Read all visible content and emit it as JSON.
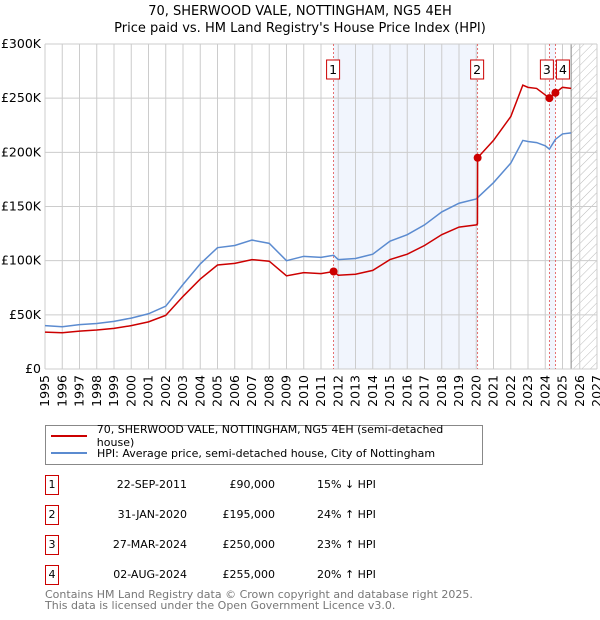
{
  "title_line1": "70, SHERWOOD VALE, NOTTINGHAM, NG5 4EH",
  "title_line2": "Price paid vs. HM Land Registry's House Price Index (HPI)",
  "chart_data": {
    "type": "line",
    "title": "70, SHERWOOD VALE, NOTTINGHAM, NG5 4EH — Price paid vs. HM Land Registry's House Price Index (HPI)",
    "xlim": [
      1995,
      2027
    ],
    "ylim": [
      0,
      300000
    ],
    "x_ticks": [
      "1995",
      "1996",
      "1997",
      "1998",
      "1999",
      "2000",
      "2001",
      "2002",
      "2003",
      "2004",
      "2005",
      "2006",
      "2007",
      "2008",
      "2009",
      "2010",
      "2011",
      "2012",
      "2013",
      "2014",
      "2015",
      "2016",
      "2017",
      "2018",
      "2019",
      "2020",
      "2021",
      "2022",
      "2023",
      "2024",
      "2025",
      "2026",
      "2027"
    ],
    "y_ticks": [
      {
        "v": 0,
        "label": "£0"
      },
      {
        "v": 50000,
        "label": "£50K"
      },
      {
        "v": 100000,
        "label": "£100K"
      },
      {
        "v": 150000,
        "label": "£150K"
      },
      {
        "v": 200000,
        "label": "£200K"
      },
      {
        "v": 250000,
        "label": "£250K"
      },
      {
        "v": 300000,
        "label": "£300K"
      }
    ],
    "grid": true,
    "forecast_start": 2025.5,
    "shaded_ranges": [
      [
        2011.73,
        2020.08
      ],
      [
        2024.24,
        2024.59
      ]
    ],
    "series": [
      {
        "name": "70, SHERWOOD VALE, NOTTINGHAM, NG5 4EH (semi-detached house)",
        "color": "#cc0000",
        "x": [
          1995,
          1996,
          1997,
          1998,
          1999,
          2000,
          2001,
          2002,
          2003,
          2004,
          2005,
          2006,
          2007,
          2008,
          2009,
          2010,
          2011,
          2011.73,
          2012,
          2013,
          2014,
          2015,
          2016,
          2017,
          2018,
          2019,
          2020,
          2020.07,
          2020.08,
          2021,
          2022,
          2022.7,
          2023,
          2023.5,
          2024,
          2024.24,
          2024.59,
          2025,
          2025.5
        ],
        "y": [
          34000,
          33500,
          35000,
          36000,
          37500,
          40000,
          43500,
          49500,
          67000,
          83000,
          96000,
          97500,
          101000,
          99500,
          86000,
          89000,
          88000,
          90000,
          86500,
          87500,
          91000,
          101000,
          106000,
          114000,
          124000,
          131000,
          133000,
          134000,
          195000,
          211000,
          233000,
          262000,
          260000,
          259000,
          253000,
          250000,
          255000,
          260000,
          259000
        ]
      },
      {
        "name": "HPI: Average price, semi-detached house, City of Nottingham",
        "color": "#5b8bd0",
        "x": [
          1995,
          1996,
          1997,
          1998,
          1999,
          2000,
          2001,
          2002,
          2003,
          2004,
          2005,
          2006,
          2007,
          2008,
          2009,
          2010,
          2011,
          2011.73,
          2012,
          2013,
          2014,
          2015,
          2016,
          2017,
          2018,
          2019,
          2020,
          2021,
          2022,
          2022.7,
          2023,
          2023.5,
          2024,
          2024.24,
          2024.59,
          2025,
          2025.5
        ],
        "y": [
          40000,
          39000,
          41000,
          42000,
          44000,
          47000,
          51000,
          58000,
          78000,
          97000,
          112000,
          114000,
          119000,
          116000,
          100000,
          104000,
          103000,
          105000,
          101000,
          102000,
          106000,
          118000,
          124000,
          133000,
          145000,
          153000,
          157000,
          172000,
          190000,
          211000,
          210000,
          209000,
          206000,
          203000,
          212000,
          217000,
          218000
        ]
      }
    ],
    "sales": [
      {
        "label": "1",
        "x": 2011.73,
        "y": 90000
      },
      {
        "label": "2",
        "x": 2020.08,
        "y": 195000
      },
      {
        "label": "3",
        "x": 2024.24,
        "y": 250000
      },
      {
        "label": "4",
        "x": 2024.59,
        "y": 255000
      }
    ]
  },
  "legend": {
    "property": "70, SHERWOOD VALE, NOTTINGHAM, NG5 4EH (semi-detached house)",
    "hpi": "HPI: Average price, semi-detached house, City of Nottingham"
  },
  "transactions": [
    {
      "num": "1",
      "date": "22-SEP-2011",
      "price": "£90,000",
      "hpi": "15% ↓ HPI"
    },
    {
      "num": "2",
      "date": "31-JAN-2020",
      "price": "£195,000",
      "hpi": "24% ↑ HPI"
    },
    {
      "num": "3",
      "date": "27-MAR-2024",
      "price": "£250,000",
      "hpi": "23% ↑ HPI"
    },
    {
      "num": "4",
      "date": "02-AUG-2024",
      "price": "£255,000",
      "hpi": "20% ↑ HPI"
    }
  ],
  "footer_line1": "Contains HM Land Registry data © Crown copyright and database right 2025.",
  "footer_line2": "This data is licensed under the Open Government Licence v3.0."
}
